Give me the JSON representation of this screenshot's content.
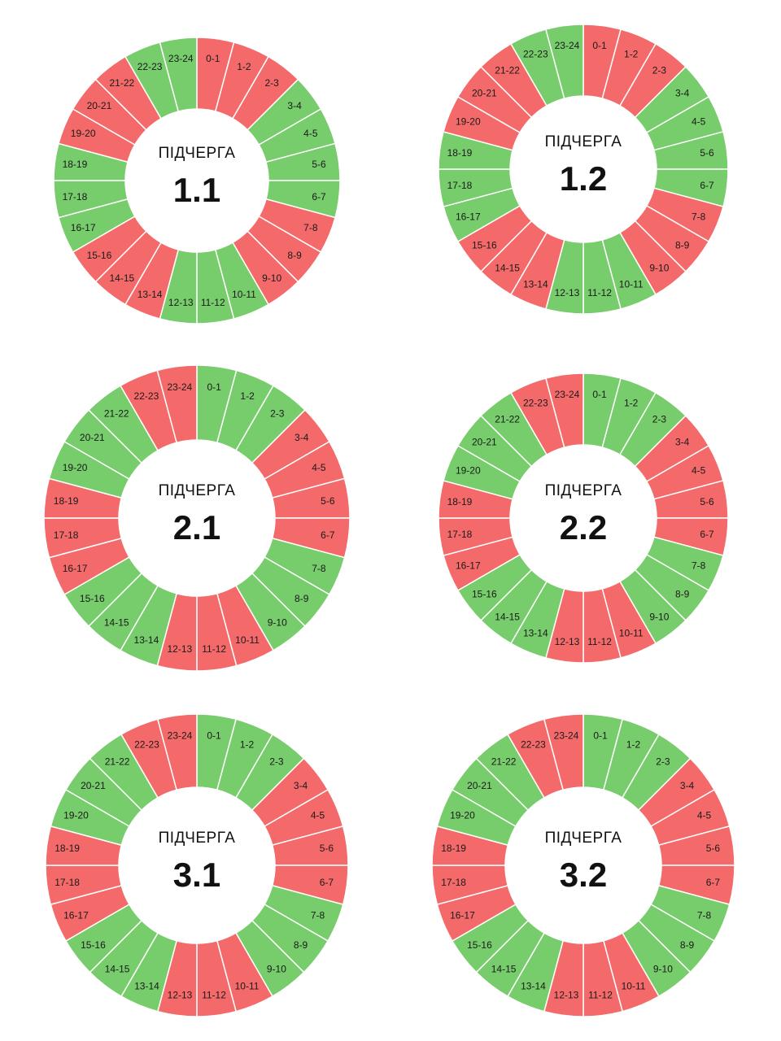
{
  "colors": {
    "on": "#77cc6b",
    "off": "#f46a6a",
    "separator": "#ffffff"
  },
  "chart_data": [
    {
      "type": "pie",
      "title": "ПІДЧЕРГА",
      "group": "1.1",
      "categories": [
        "0-1",
        "1-2",
        "2-3",
        "3-4",
        "4-5",
        "5-6",
        "6-7",
        "7-8",
        "8-9",
        "9-10",
        "10-11",
        "11-12",
        "12-13",
        "13-14",
        "14-15",
        "15-16",
        "16-17",
        "17-18",
        "18-19",
        "19-20",
        "20-21",
        "21-22",
        "22-23",
        "23-24"
      ],
      "status": [
        "off",
        "off",
        "off",
        "on",
        "on",
        "on",
        "on",
        "off",
        "off",
        "off",
        "on",
        "on",
        "on",
        "off",
        "off",
        "off",
        "on",
        "on",
        "on",
        "off",
        "off",
        "off",
        "on",
        "on"
      ]
    },
    {
      "type": "pie",
      "title": "ПІДЧЕРГА",
      "group": "1.2",
      "categories": [
        "0-1",
        "1-2",
        "2-3",
        "3-4",
        "4-5",
        "5-6",
        "6-7",
        "7-8",
        "8-9",
        "9-10",
        "10-11",
        "11-12",
        "12-13",
        "13-14",
        "14-15",
        "15-16",
        "16-17",
        "17-18",
        "18-19",
        "19-20",
        "20-21",
        "21-22",
        "22-23",
        "23-24"
      ],
      "status": [
        "off",
        "off",
        "off",
        "on",
        "on",
        "on",
        "on",
        "off",
        "off",
        "off",
        "on",
        "on",
        "on",
        "off",
        "off",
        "off",
        "on",
        "on",
        "on",
        "off",
        "off",
        "off",
        "on",
        "on"
      ]
    },
    {
      "type": "pie",
      "title": "ПІДЧЕРГА",
      "group": "2.1",
      "categories": [
        "0-1",
        "1-2",
        "2-3",
        "3-4",
        "4-5",
        "5-6",
        "6-7",
        "7-8",
        "8-9",
        "9-10",
        "10-11",
        "11-12",
        "12-13",
        "13-14",
        "14-15",
        "15-16",
        "16-17",
        "17-18",
        "18-19",
        "19-20",
        "20-21",
        "21-22",
        "22-23",
        "23-24"
      ],
      "status": [
        "on",
        "on",
        "on",
        "off",
        "off",
        "off",
        "off",
        "on",
        "on",
        "on",
        "off",
        "off",
        "off",
        "on",
        "on",
        "on",
        "off",
        "off",
        "off",
        "on",
        "on",
        "on",
        "off",
        "off"
      ]
    },
    {
      "type": "pie",
      "title": "ПІДЧЕРГА",
      "group": "2.2",
      "categories": [
        "0-1",
        "1-2",
        "2-3",
        "3-4",
        "4-5",
        "5-6",
        "6-7",
        "7-8",
        "8-9",
        "9-10",
        "10-11",
        "11-12",
        "12-13",
        "13-14",
        "14-15",
        "15-16",
        "16-17",
        "17-18",
        "18-19",
        "19-20",
        "20-21",
        "21-22",
        "22-23",
        "23-24"
      ],
      "status": [
        "on",
        "on",
        "on",
        "off",
        "off",
        "off",
        "off",
        "on",
        "on",
        "on",
        "off",
        "off",
        "off",
        "on",
        "on",
        "on",
        "off",
        "off",
        "off",
        "on",
        "on",
        "on",
        "off",
        "off"
      ]
    },
    {
      "type": "pie",
      "title": "ПІДЧЕРГА",
      "group": "3.1",
      "categories": [
        "0-1",
        "1-2",
        "2-3",
        "3-4",
        "4-5",
        "5-6",
        "6-7",
        "7-8",
        "8-9",
        "9-10",
        "10-11",
        "11-12",
        "12-13",
        "13-14",
        "14-15",
        "15-16",
        "16-17",
        "17-18",
        "18-19",
        "19-20",
        "20-21",
        "21-22",
        "22-23",
        "23-24"
      ],
      "status": [
        "on",
        "on",
        "on",
        "off",
        "off",
        "off",
        "off",
        "on",
        "on",
        "on",
        "off",
        "off",
        "off",
        "on",
        "on",
        "on",
        "off",
        "off",
        "off",
        "on",
        "on",
        "on",
        "off",
        "off"
      ]
    },
    {
      "type": "pie",
      "title": "ПІДЧЕРГА",
      "group": "3.2",
      "categories": [
        "0-1",
        "1-2",
        "2-3",
        "3-4",
        "4-5",
        "5-6",
        "6-7",
        "7-8",
        "8-9",
        "9-10",
        "10-11",
        "11-12",
        "12-13",
        "13-14",
        "14-15",
        "15-16",
        "16-17",
        "17-18",
        "18-19",
        "19-20",
        "20-21",
        "21-22",
        "22-23",
        "23-24"
      ],
      "status": [
        "on",
        "on",
        "on",
        "off",
        "off",
        "off",
        "off",
        "on",
        "on",
        "on",
        "off",
        "off",
        "off",
        "on",
        "on",
        "on",
        "off",
        "off",
        "off",
        "on",
        "on",
        "on",
        "off",
        "off"
      ]
    }
  ]
}
